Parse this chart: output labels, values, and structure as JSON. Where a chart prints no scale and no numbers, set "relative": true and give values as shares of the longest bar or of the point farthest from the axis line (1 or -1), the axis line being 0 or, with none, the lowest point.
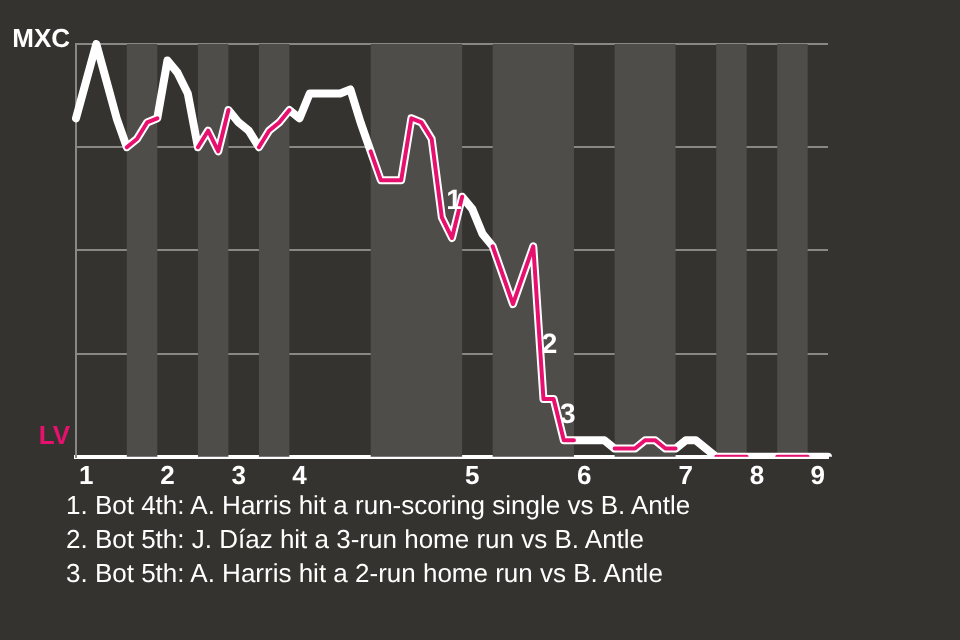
{
  "chart_data": {
    "type": "line",
    "relative": true,
    "grid": "y",
    "legend": false,
    "marker": "none",
    "line_style": "solid",
    "categories": [
      null,
      "1",
      null,
      null,
      null,
      null,
      null,
      null,
      null,
      "2",
      null,
      null,
      null,
      null,
      null,
      null,
      "3",
      null,
      null,
      null,
      null,
      null,
      "4",
      null,
      null,
      null,
      null,
      null,
      null,
      null,
      null,
      null,
      null,
      null,
      null,
      null,
      null,
      null,
      null,
      "5",
      null,
      null,
      null,
      null,
      null,
      null,
      null,
      null,
      null,
      null,
      "6",
      null,
      null,
      null,
      null,
      null,
      null,
      null,
      null,
      null,
      "7",
      null,
      null,
      null,
      null,
      null,
      null,
      "8",
      null,
      null,
      null,
      null,
      null,
      "9",
      null
    ],
    "series": [
      {
        "color": "#ffffff",
        "values": [
          0.82,
          0.91,
          1,
          0.91,
          0.82,
          0.75,
          0.77,
          0.81,
          0.82,
          0.96,
          0.93,
          0.88,
          0.75,
          0.79,
          0.74,
          0.84,
          0.81,
          0.79,
          0.75,
          0.79,
          0.81,
          0.84,
          0.82,
          0.88,
          0.88,
          0.88,
          0.88,
          0.89,
          0.81,
          0.74,
          0.67,
          0.67,
          0.67,
          0.82,
          0.81,
          0.77,
          0.58,
          0.53,
          0.63,
          0.6,
          0.54,
          0.51,
          0.44,
          0.37,
          0.44,
          0.51,
          0.14,
          0.14,
          0.04,
          0.04,
          0.04,
          0.04,
          0.04,
          0.02,
          0.02,
          0.02,
          0.04,
          0.04,
          0.02,
          0.02,
          0.04,
          0.04,
          0.02,
          0,
          0,
          0,
          0,
          0,
          0,
          0,
          0,
          0,
          0,
          0,
          0
        ]
      },
      {
        "color": "#e8106e",
        "values": [
          null,
          null,
          null,
          null,
          null,
          0.75,
          0.77,
          0.81,
          0.82,
          null,
          null,
          null,
          0.75,
          0.79,
          0.74,
          0.84,
          null,
          null,
          0.75,
          0.79,
          0.81,
          0.84,
          null,
          null,
          null,
          null,
          null,
          null,
          null,
          0.74,
          0.67,
          0.67,
          0.67,
          0.82,
          0.81,
          0.77,
          0.58,
          0.53,
          0.63,
          null,
          null,
          0.51,
          0.44,
          0.37,
          0.44,
          0.51,
          0.14,
          0.14,
          0.04,
          0.04,
          null,
          null,
          null,
          0.02,
          0.02,
          0.02,
          0.04,
          0.04,
          0.02,
          0.02,
          null,
          null,
          null,
          0,
          0,
          0,
          0,
          null,
          null,
          0,
          0,
          0,
          0,
          null,
          null
        ]
      }
    ],
    "annotations": [
      "MXC",
      "LV",
      "1",
      "2",
      "3",
      "1. Bot 4th: A. Harris hit a run-scoring single vs B. Antle",
      "2. Bot 5th: J. Díaz hit a 3-run home run vs B. Antle",
      "3. Bot 5th: A. Harris hit a 2-run home run vs B. Antle"
    ]
  }
}
